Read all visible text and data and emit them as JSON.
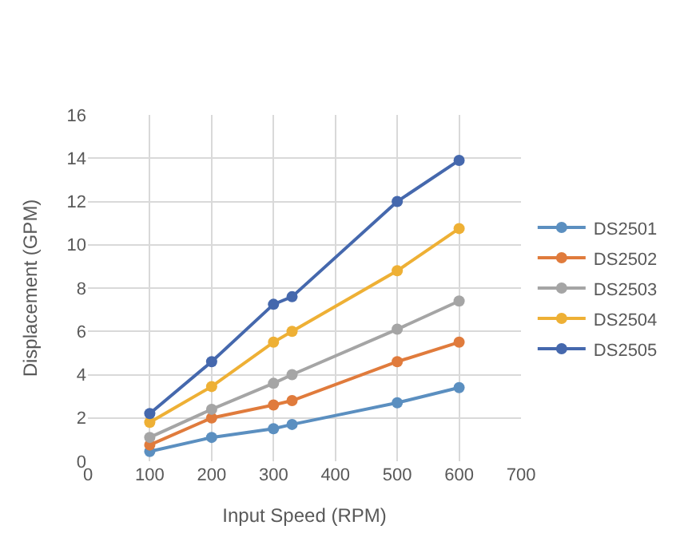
{
  "chart_data": {
    "type": "line",
    "xlabel": "Input Speed (RPM)",
    "ylabel": "Displacement (GPM)",
    "x": [
      100,
      200,
      300,
      330,
      500,
      600
    ],
    "series": [
      {
        "name": "DS2501",
        "color": "#5b8fc0",
        "values": [
          0.45,
          1.1,
          1.5,
          1.7,
          2.7,
          3.4
        ]
      },
      {
        "name": "DS2502",
        "color": "#e07b3c",
        "values": [
          0.75,
          2.0,
          2.6,
          2.8,
          4.6,
          5.5
        ]
      },
      {
        "name": "DS2503",
        "color": "#a5a5a5",
        "values": [
          1.1,
          2.4,
          3.6,
          4.0,
          6.1,
          7.4
        ]
      },
      {
        "name": "DS2504",
        "color": "#eeb035",
        "values": [
          1.8,
          3.45,
          5.5,
          6.0,
          8.8,
          10.75
        ]
      },
      {
        "name": "DS2505",
        "color": "#4568ad",
        "values": [
          2.2,
          4.6,
          7.25,
          7.6,
          12.0,
          13.9
        ]
      }
    ],
    "xlim": [
      0,
      700
    ],
    "xticks": [
      0,
      100,
      200,
      300,
      400,
      500,
      600,
      700
    ],
    "ylim": [
      0,
      16
    ],
    "yticks": [
      0,
      2,
      4,
      6,
      8,
      10,
      12,
      14,
      16
    ],
    "grid": true,
    "legend": "right",
    "marker": "circle",
    "line_style": "solid"
  }
}
